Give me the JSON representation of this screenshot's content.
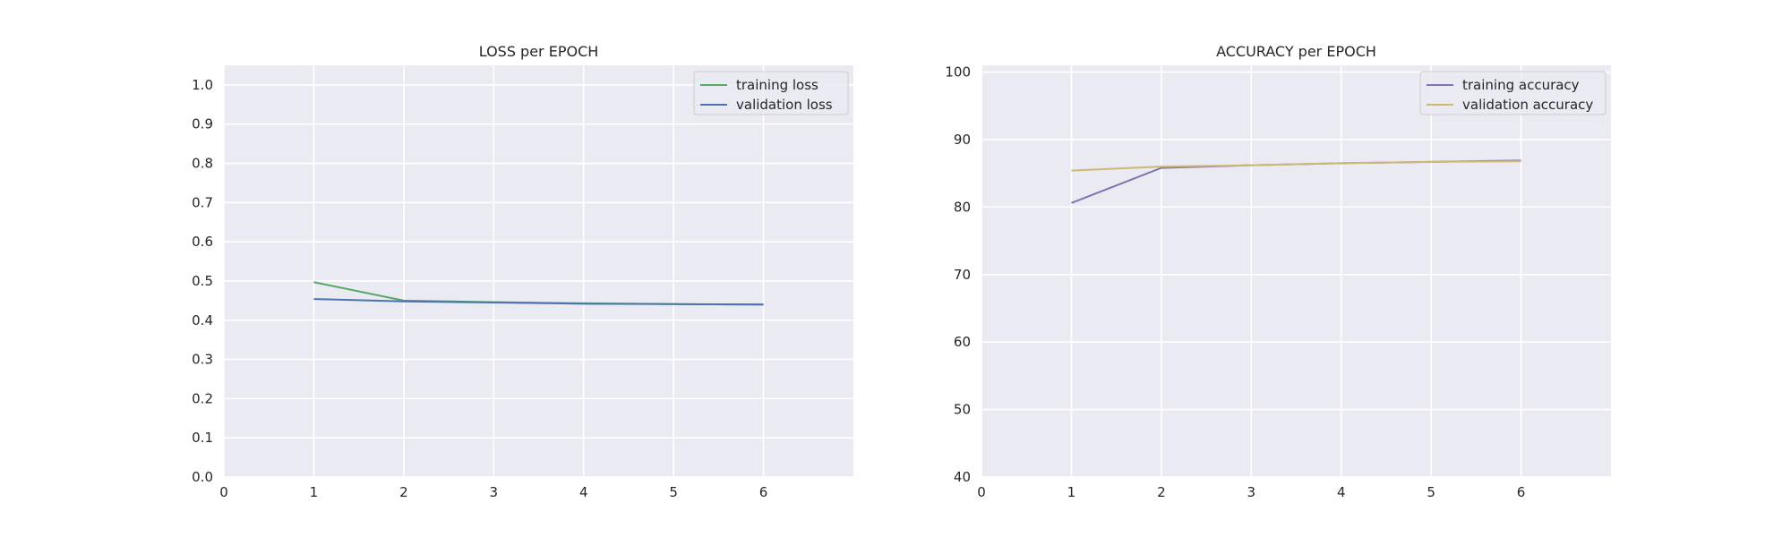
{
  "chart_data": [
    {
      "type": "line",
      "title": "LOSS per EPOCH",
      "xlabel": "",
      "ylabel": "",
      "xlim": [
        0,
        7
      ],
      "ylim": [
        0,
        1.05
      ],
      "x_ticks": [
        0,
        1,
        2,
        3,
        4,
        5,
        6
      ],
      "y_ticks": [
        0.0,
        0.1,
        0.2,
        0.3,
        0.4,
        0.5,
        0.6,
        0.7,
        0.8,
        0.9,
        1.0
      ],
      "y_tick_labels": [
        "0.0",
        "0.1",
        "0.2",
        "0.3",
        "0.4",
        "0.5",
        "0.6",
        "0.7",
        "0.8",
        "0.9",
        "1.0"
      ],
      "grid": true,
      "legend_position": "top-right",
      "x": [
        1,
        2,
        3,
        4,
        5,
        6
      ],
      "series": [
        {
          "name": "training loss",
          "color": "#55a868",
          "values": [
            0.497,
            0.45,
            0.446,
            0.443,
            0.441,
            0.44
          ]
        },
        {
          "name": "validation loss",
          "color": "#4c72b0",
          "values": [
            0.454,
            0.448,
            0.445,
            0.442,
            0.441,
            0.44
          ]
        }
      ]
    },
    {
      "type": "line",
      "title": "ACCURACY per EPOCH",
      "xlabel": "",
      "ylabel": "",
      "xlim": [
        0,
        7
      ],
      "ylim": [
        40,
        101
      ],
      "x_ticks": [
        0,
        1,
        2,
        3,
        4,
        5,
        6
      ],
      "y_ticks": [
        40,
        50,
        60,
        70,
        80,
        90,
        100
      ],
      "y_tick_labels": [
        "40",
        "50",
        "60",
        "70",
        "80",
        "90",
        "100"
      ],
      "grid": true,
      "legend_position": "top-right",
      "x": [
        1,
        2,
        3,
        4,
        5,
        6
      ],
      "series": [
        {
          "name": "training accuracy",
          "color": "#8172b2",
          "values": [
            80.6,
            85.8,
            86.2,
            86.5,
            86.7,
            86.9
          ]
        },
        {
          "name": "validation accuracy",
          "color": "#ccb974",
          "values": [
            85.4,
            86.0,
            86.2,
            86.5,
            86.7,
            86.8
          ]
        }
      ]
    }
  ]
}
